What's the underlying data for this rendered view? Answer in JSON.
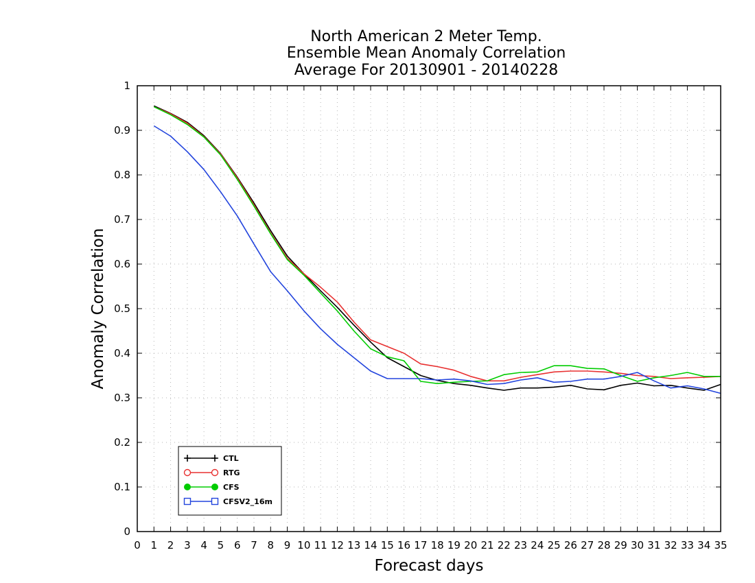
{
  "chart_data": {
    "type": "line",
    "title": [
      "North American 2 Meter Temp.",
      "Ensemble Mean Anomaly Correlation",
      "Average For 20130901 - 20140228"
    ],
    "xlabel": "Forecast days",
    "ylabel": "Anomaly Correlation",
    "xlim": [
      0,
      35
    ],
    "ylim": [
      0,
      1
    ],
    "x_ticks": [
      0,
      1,
      2,
      3,
      4,
      5,
      6,
      7,
      8,
      9,
      10,
      11,
      12,
      13,
      14,
      15,
      16,
      17,
      18,
      19,
      20,
      21,
      22,
      23,
      24,
      25,
      26,
      27,
      28,
      29,
      30,
      31,
      32,
      33,
      34,
      35
    ],
    "y_ticks": [
      "0",
      "0.1",
      "0.2",
      "0.3",
      "0.4",
      "0.5",
      "0.6",
      "0.7",
      "0.8",
      "0.9",
      "1"
    ],
    "grid": true,
    "legend_position": "bottom-left",
    "x": [
      1,
      2,
      3,
      4,
      5,
      6,
      7,
      8,
      9,
      10,
      11,
      12,
      13,
      14,
      15,
      16,
      17,
      18,
      19,
      20,
      21,
      22,
      23,
      24,
      25,
      26,
      27,
      28,
      29,
      30,
      31,
      32,
      33,
      34,
      35
    ],
    "series": [
      {
        "name": "CTL",
        "color": "#000000",
        "marker": "plus",
        "values": [
          0.955,
          0.938,
          0.918,
          0.888,
          0.848,
          0.795,
          0.737,
          0.675,
          0.618,
          0.578,
          0.54,
          0.503,
          0.463,
          0.425,
          0.39,
          0.37,
          0.35,
          0.339,
          0.332,
          0.328,
          0.322,
          0.317,
          0.322,
          0.322,
          0.324,
          0.328,
          0.32,
          0.318,
          0.328,
          0.333,
          0.327,
          0.328,
          0.322,
          0.317,
          0.33
        ]
      },
      {
        "name": "RTG",
        "color": "#e83030",
        "marker": "circle-open",
        "values": [
          0.953,
          0.937,
          0.916,
          0.886,
          0.847,
          0.793,
          0.733,
          0.67,
          0.613,
          0.578,
          0.548,
          0.515,
          0.47,
          0.43,
          0.415,
          0.4,
          0.376,
          0.37,
          0.362,
          0.348,
          0.338,
          0.338,
          0.346,
          0.352,
          0.358,
          0.36,
          0.36,
          0.358,
          0.355,
          0.35,
          0.348,
          0.343,
          0.345,
          0.346,
          0.348
        ]
      },
      {
        "name": "CFS",
        "color": "#00cc00",
        "marker": "circle-filled",
        "values": [
          0.953,
          0.935,
          0.913,
          0.885,
          0.845,
          0.79,
          0.73,
          0.668,
          0.61,
          0.575,
          0.535,
          0.495,
          0.45,
          0.41,
          0.392,
          0.383,
          0.337,
          0.332,
          0.335,
          0.337,
          0.338,
          0.352,
          0.357,
          0.358,
          0.372,
          0.372,
          0.366,
          0.365,
          0.35,
          0.337,
          0.345,
          0.35,
          0.357,
          0.348,
          0.348
        ]
      },
      {
        "name": "CFSV2_16m",
        "color": "#2244dd",
        "marker": "square-open",
        "values": [
          0.91,
          0.887,
          0.852,
          0.812,
          0.762,
          0.708,
          0.645,
          0.583,
          0.54,
          0.495,
          0.455,
          0.42,
          0.39,
          0.36,
          0.343,
          0.343,
          0.343,
          0.34,
          0.342,
          0.338,
          0.33,
          0.332,
          0.34,
          0.345,
          0.335,
          0.337,
          0.342,
          0.342,
          0.348,
          0.357,
          0.338,
          0.322,
          0.327,
          0.32,
          0.31
        ]
      }
    ]
  }
}
